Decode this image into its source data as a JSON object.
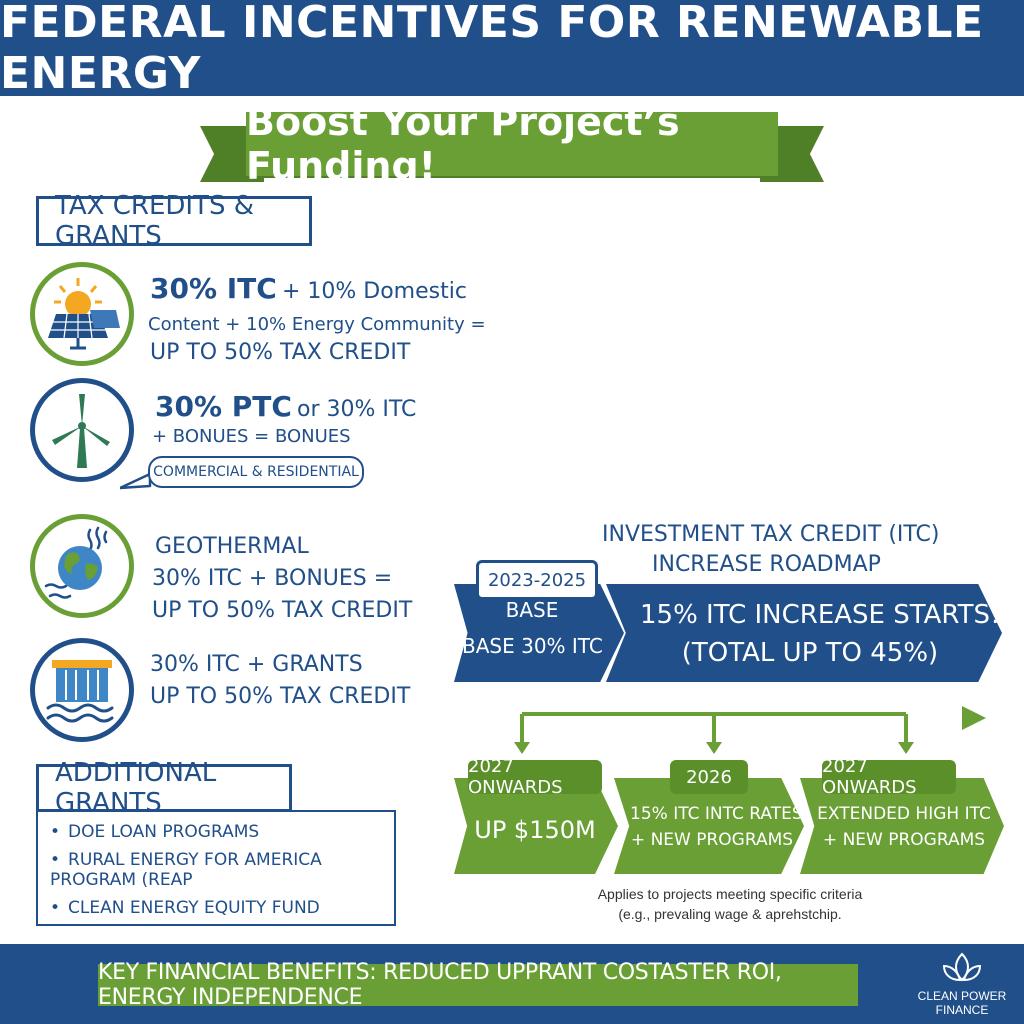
{
  "header": {
    "title": "FEDERAL INCENTIVES FOR RENEWABLE ENERGY"
  },
  "ribbon": {
    "text": "Boost Your Project’s Funding!"
  },
  "tax_section": {
    "heading": "TAX CREDITS & GRANTS",
    "items": [
      {
        "icon": "solar-panel-icon",
        "line1_big": "30% ITC",
        "line1_rest": "+ 10% Domestic",
        "line2": "Content + 10% Energy Community =",
        "line3": "UP TO 50% TAX CREDIT"
      },
      {
        "icon": "wind-turbine-icon",
        "line1_big": "30% PTC",
        "line1_rest": "or 30% ITC",
        "line2": "+ BONUES = BONUES",
        "tag": "COMMERCIAL & RESIDENTIAL"
      },
      {
        "icon": "geothermal-globe-icon",
        "line1": "GEOTHERMAL",
        "line2": "30% ITC + BONUES =",
        "line3": "UP TO 50% TAX CREDIT"
      },
      {
        "icon": "hydro-dam-icon",
        "line1": "30% ITC + GRANTS",
        "line2": "UP TO 50% TAX CREDIT"
      }
    ]
  },
  "grants_section": {
    "heading": "ADDITIONAL GRANTS",
    "items": [
      "DOE LOAN PROGRAMS",
      "RURAL ENERGY FOR AMERICA PROGRAM (REAP",
      "CLEAN ENERGY EQUITY FUND"
    ]
  },
  "roadmap": {
    "title_line1": "INVESTMENT TAX CREDIT (ITC)",
    "title_line2": "INCREASE ROADMAP",
    "stage1": {
      "tab": "2023-2025",
      "line1": "BASE",
      "line2": "BASE 30% ITC"
    },
    "stage2": {
      "line1": "15% ITC INCREASE STARTS!",
      "line2": "(TOTAL UP TO 45%)"
    },
    "green": [
      {
        "tab": "2027 ONWARDS",
        "line1": "UP $150M",
        "line2": ""
      },
      {
        "tab": "2026",
        "line1": "15% ITC INTC RATES",
        "line2": "+ NEW PROGRAMS"
      },
      {
        "tab": "2027 ONWARDS",
        "line1": "EXTENDED HIGH ITC",
        "line2": "+ NEW PROGRAMS"
      }
    ],
    "note_line1": "Applies to projects meeting specific criteria",
    "note_line2": "(e.g., prevaling wage & aprehstchip."
  },
  "footer": {
    "text": "KEY FINANCIAL BENEFITS: REDUCED UPPRANT COSTASTER ROI, ENERGY INDEPENDENCE",
    "logo_line1": "CLEAN POWER",
    "logo_line2": "FINANCE"
  },
  "colors": {
    "navy": "#204f89",
    "green": "#6a9f35",
    "dark_green": "#4f7f27",
    "sun": "#f4a822"
  }
}
